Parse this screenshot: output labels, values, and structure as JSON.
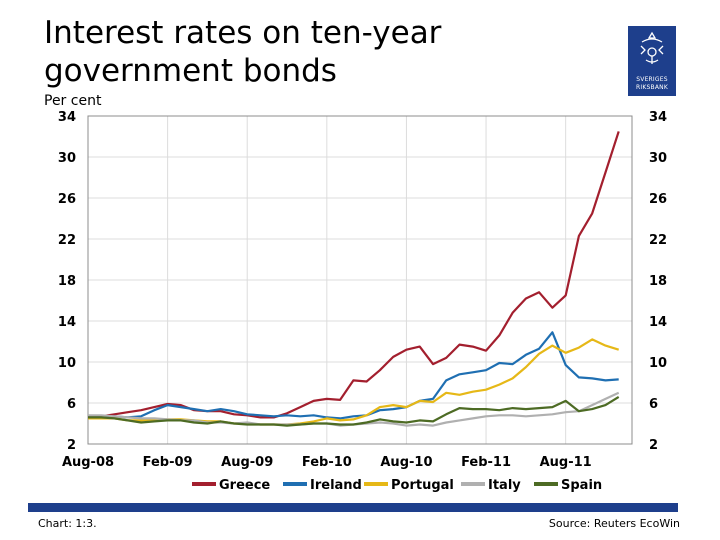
{
  "title": "Interest rates on ten-year government bonds",
  "unit_label": "Per cent",
  "logo": {
    "line1": "SVERIGES",
    "line2": "RIKSBANK",
    "icon": "riksbank-crest-icon",
    "color": "#1e3f8c"
  },
  "footer": {
    "chart_number": "Chart: 1:3.",
    "source": "Source: Reuters EcoWin"
  },
  "chart_data": {
    "type": "line",
    "x_ticks": [
      "Aug-08",
      "Feb-09",
      "Aug-09",
      "Feb-10",
      "Aug-10",
      "Feb-11",
      "Aug-11"
    ],
    "y_ticks": [
      2,
      6,
      10,
      14,
      18,
      22,
      26,
      30,
      34
    ],
    "ylim": [
      2,
      34
    ],
    "grid": true,
    "legend_position": "bottom",
    "x": [
      "2008-08",
      "2008-09",
      "2008-10",
      "2008-11",
      "2008-12",
      "2009-01",
      "2009-02",
      "2009-03",
      "2009-04",
      "2009-05",
      "2009-06",
      "2009-07",
      "2009-08",
      "2009-09",
      "2009-10",
      "2009-11",
      "2009-12",
      "2010-01",
      "2010-02",
      "2010-03",
      "2010-04",
      "2010-05",
      "2010-06",
      "2010-07",
      "2010-08",
      "2010-09",
      "2010-10",
      "2010-11",
      "2010-12",
      "2011-01",
      "2011-02",
      "2011-03",
      "2011-04",
      "2011-05",
      "2011-06",
      "2011-07",
      "2011-08",
      "2011-09",
      "2011-10",
      "2011-11",
      "2011-12"
    ],
    "series": [
      {
        "name": "Greece",
        "color": "#a31f2e",
        "values": [
          4.7,
          4.7,
          4.9,
          5.1,
          5.3,
          5.6,
          5.9,
          5.8,
          5.3,
          5.2,
          5.2,
          4.9,
          4.8,
          4.6,
          4.6,
          5.0,
          5.6,
          6.2,
          6.4,
          6.3,
          8.2,
          8.1,
          9.2,
          10.5,
          11.2,
          11.5,
          9.8,
          10.4,
          11.7,
          11.5,
          11.1,
          12.6,
          14.8,
          16.2,
          16.8,
          15.3,
          16.5,
          22.3,
          24.5,
          28.5,
          32.5
        ]
      },
      {
        "name": "Ireland",
        "color": "#1f6fb2",
        "values": [
          4.6,
          4.6,
          4.7,
          4.6,
          4.7,
          5.3,
          5.8,
          5.6,
          5.4,
          5.2,
          5.4,
          5.2,
          4.9,
          4.8,
          4.7,
          4.8,
          4.7,
          4.8,
          4.6,
          4.5,
          4.7,
          4.8,
          5.3,
          5.4,
          5.6,
          6.2,
          6.4,
          8.2,
          8.8,
          9.0,
          9.2,
          9.9,
          9.8,
          10.7,
          11.3,
          12.9,
          9.7,
          8.5,
          8.4,
          8.2,
          8.3
        ]
      },
      {
        "name": "Portugal",
        "color": "#e6b817",
        "values": [
          4.5,
          4.5,
          4.5,
          4.3,
          4.3,
          4.4,
          4.4,
          4.4,
          4.3,
          4.2,
          4.2,
          4.0,
          4.0,
          3.9,
          3.9,
          3.9,
          4.0,
          4.2,
          4.5,
          4.3,
          4.4,
          4.8,
          5.6,
          5.8,
          5.6,
          6.2,
          6.1,
          7.0,
          6.8,
          7.1,
          7.3,
          7.8,
          8.4,
          9.5,
          10.8,
          11.6,
          10.9,
          11.4,
          12.2,
          11.6,
          11.2
        ]
      },
      {
        "name": "Italy",
        "color": "#b0b0b0",
        "values": [
          4.8,
          4.8,
          4.7,
          4.6,
          4.5,
          4.5,
          4.4,
          4.3,
          4.3,
          4.1,
          4.1,
          4.0,
          4.1,
          3.9,
          3.9,
          3.9,
          3.9,
          4.0,
          4.0,
          3.8,
          3.9,
          4.0,
          4.1,
          4.0,
          3.8,
          3.9,
          3.8,
          4.1,
          4.3,
          4.5,
          4.7,
          4.8,
          4.8,
          4.7,
          4.8,
          4.9,
          5.1,
          5.2,
          5.8,
          6.4,
          7.0
        ]
      },
      {
        "name": "Spain",
        "color": "#4d6b24",
        "values": [
          4.6,
          4.6,
          4.5,
          4.3,
          4.1,
          4.2,
          4.3,
          4.3,
          4.1,
          4.0,
          4.2,
          4.0,
          3.9,
          3.9,
          3.9,
          3.8,
          3.9,
          4.0,
          4.0,
          3.9,
          3.9,
          4.1,
          4.4,
          4.2,
          4.1,
          4.3,
          4.2,
          4.9,
          5.5,
          5.4,
          5.4,
          5.3,
          5.5,
          5.4,
          5.5,
          5.6,
          6.2,
          5.2,
          5.4,
          5.8,
          6.6
        ]
      }
    ]
  }
}
